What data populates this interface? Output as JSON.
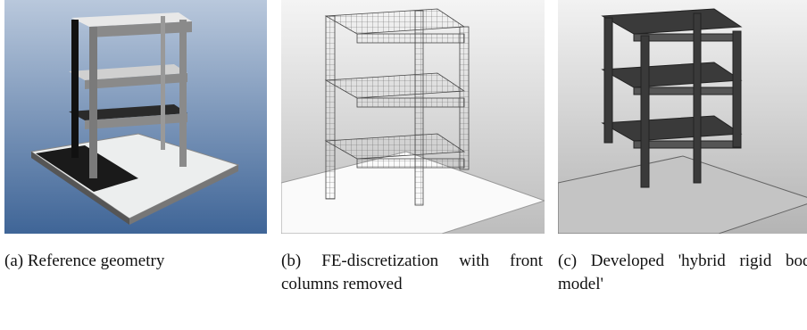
{
  "figures": [
    {
      "caption": "(a) Reference geometry"
    },
    {
      "caption": "(b) FE-discretization with front columns removed"
    },
    {
      "caption": "(c) Developed 'hybrid rigid body model'"
    }
  ]
}
